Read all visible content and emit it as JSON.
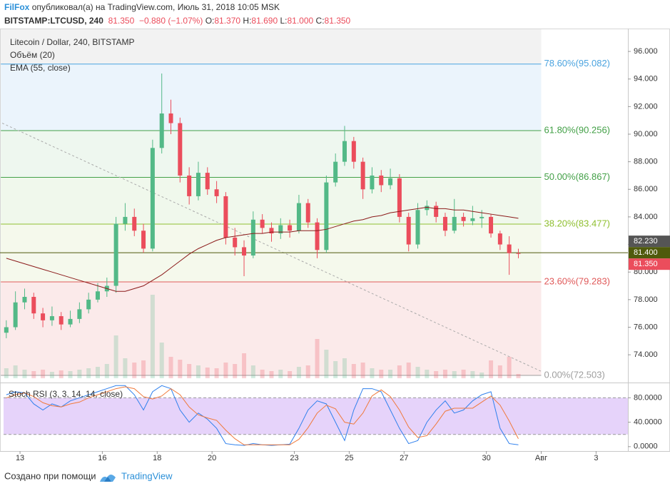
{
  "header": {
    "author": "FilFox",
    "published": "опубликовал(а) на TradingView.com, Июль 31, 2018 10:05 MSK",
    "symbol": "BITSTAMP:LTCUSD, 240",
    "last": "81.350",
    "change": "−0.880 (−1.07%)",
    "ohlc": [
      {
        "label": "O:",
        "value": "81.370"
      },
      {
        "label": "H:",
        "value": "81.690"
      },
      {
        "label": "L:",
        "value": "81.000"
      },
      {
        "label": "C:",
        "value": "81.350"
      }
    ]
  },
  "chart_data": {
    "type": "candlestick",
    "legend": [
      "Litecoin / Dollar, 240, BITSTAMP",
      "Объём (20)",
      "EMA (55, close)"
    ],
    "up_color": "#53b987",
    "down_color": "#eb4d5c",
    "xlim": [
      12.27,
      35.16
    ],
    "xticks": [
      13,
      16,
      18,
      20,
      23,
      25,
      27,
      30,
      {
        "value": 32,
        "label": "Авг"
      },
      {
        "value": 34,
        "label": "3"
      }
    ],
    "ylim": [
      72.04,
      97.66
    ],
    "yticks": [
      {
        "value": 74,
        "label": "74.000"
      },
      {
        "value": 76,
        "label": "76.000"
      },
      {
        "value": 78,
        "label": "78.000"
      },
      {
        "value": 80,
        "label": "80.000"
      },
      {
        "value": 82,
        "label": "82.000"
      },
      {
        "value": 84,
        "label": "84.000"
      },
      {
        "value": 86,
        "label": "86.000"
      },
      {
        "value": 88,
        "label": "88.000"
      },
      {
        "value": 90,
        "label": "90.000"
      },
      {
        "value": 92,
        "label": "92.000"
      },
      {
        "value": 94,
        "label": "94.000"
      },
      {
        "value": 96,
        "label": "96.000"
      }
    ],
    "candles": {
      "x": [
        12.5,
        12.833,
        13.167,
        13.5,
        13.833,
        14.167,
        14.5,
        14.833,
        15.167,
        15.5,
        15.833,
        16.167,
        16.5,
        16.833,
        17.167,
        17.5,
        17.833,
        18.167,
        18.5,
        18.833,
        19.167,
        19.5,
        19.833,
        20.167,
        20.5,
        20.833,
        21.167,
        21.5,
        21.833,
        22.167,
        22.5,
        22.833,
        23.167,
        23.5,
        23.833,
        24.167,
        24.5,
        24.833,
        25.167,
        25.5,
        25.833,
        26.167,
        26.5,
        26.833,
        27.167,
        27.5,
        27.833,
        28.167,
        28.5,
        28.833,
        29.167,
        29.5,
        29.833,
        30.167,
        30.5,
        30.833,
        31.167
      ],
      "open": [
        75.6,
        76.0,
        77.8,
        78.2,
        77.0,
        76.5,
        76.8,
        76.2,
        76.6,
        77.3,
        78.0,
        78.6,
        79.0,
        83.5,
        84.0,
        83.0,
        81.7,
        89.0,
        91.5,
        90.8,
        87.0,
        85.5,
        87.2,
        86.0,
        85.5,
        82.5,
        81.8,
        81.2,
        83.8,
        83.2,
        82.8,
        83.4,
        83.0,
        85.0,
        83.6,
        81.6,
        86.5,
        88.0,
        89.5,
        88.0,
        86.0,
        87.0,
        86.3,
        86.8,
        84.0,
        82.0,
        84.5,
        84.8,
        84.0,
        83.0,
        84.0,
        83.7,
        83.9,
        84.0,
        82.8,
        82.0,
        81.37
      ],
      "high": [
        76.5,
        78.6,
        78.8,
        78.5,
        77.4,
        77.5,
        77.1,
        77.2,
        77.8,
        78.5,
        79.2,
        79.6,
        84.0,
        85.0,
        84.6,
        83.5,
        89.6,
        94.4,
        92.5,
        91.2,
        87.6,
        88.0,
        87.6,
        86.6,
        85.8,
        83.2,
        82.3,
        84.4,
        84.2,
        83.6,
        83.9,
        83.8,
        85.6,
        85.3,
        83.9,
        87.0,
        88.6,
        90.6,
        89.8,
        88.3,
        87.6,
        87.4,
        87.5,
        87.1,
        84.3,
        85.0,
        85.2,
        85.1,
        84.3,
        85.3,
        84.3,
        84.8,
        84.5,
        84.2,
        83.0,
        82.6,
        81.69
      ],
      "low": [
        75.2,
        75.8,
        77.3,
        76.6,
        76.0,
        76.1,
        75.8,
        76.0,
        76.3,
        77.0,
        77.8,
        78.2,
        78.5,
        83.0,
        82.6,
        81.4,
        81.5,
        88.6,
        90.0,
        86.5,
        84.9,
        85.2,
        85.6,
        85.0,
        82.0,
        81.2,
        79.7,
        81.0,
        82.8,
        82.2,
        82.4,
        82.5,
        82.8,
        83.2,
        81.0,
        81.4,
        86.2,
        87.7,
        87.5,
        85.3,
        85.7,
        85.8,
        86.0,
        83.6,
        81.5,
        81.7,
        84.1,
        83.6,
        82.6,
        82.8,
        83.3,
        83.4,
        83.2,
        82.5,
        81.6,
        79.8,
        81.0
      ],
      "close": [
        76.0,
        77.8,
        78.2,
        77.0,
        76.5,
        76.8,
        76.2,
        76.6,
        77.3,
        78.0,
        78.6,
        79.0,
        83.5,
        84.0,
        83.0,
        81.7,
        89.0,
        91.5,
        90.8,
        87.0,
        85.5,
        87.2,
        86.0,
        85.5,
        82.5,
        81.8,
        81.2,
        83.8,
        83.2,
        82.8,
        83.4,
        83.0,
        85.0,
        83.6,
        81.6,
        86.5,
        88.0,
        89.5,
        88.0,
        86.0,
        87.0,
        86.3,
        86.8,
        84.0,
        82.0,
        84.5,
        84.8,
        84.0,
        83.0,
        84.0,
        83.7,
        83.9,
        84.0,
        82.8,
        82.0,
        81.37,
        81.35
      ]
    },
    "volume": {
      "ylim": [
        0,
        150
      ],
      "values": [
        14,
        18,
        12,
        10,
        12,
        9,
        11,
        10,
        12,
        14,
        16,
        20,
        60,
        28,
        22,
        25,
        117,
        50,
        30,
        26,
        20,
        18,
        15,
        14,
        22,
        20,
        35,
        18,
        12,
        10,
        12,
        10,
        16,
        18,
        55,
        40,
        24,
        28,
        20,
        22,
        14,
        12,
        12,
        18,
        22,
        16,
        12,
        10,
        12,
        10,
        12,
        10,
        8,
        25,
        18,
        30,
        6
      ]
    },
    "ema": {
      "name": "EMA (55, close)",
      "color": "#8b1a1a",
      "values": [
        81.0,
        80.8,
        80.6,
        80.4,
        80.2,
        80.0,
        79.8,
        79.6,
        79.4,
        79.2,
        79.0,
        78.8,
        78.6,
        78.6,
        78.8,
        79.0,
        79.4,
        79.8,
        80.3,
        80.8,
        81.3,
        81.7,
        82.0,
        82.3,
        82.5,
        82.6,
        82.7,
        82.8,
        82.8,
        82.9,
        82.9,
        82.9,
        83.0,
        83.0,
        83.0,
        83.1,
        83.3,
        83.5,
        83.7,
        83.8,
        84.0,
        84.1,
        84.3,
        84.4,
        84.5,
        84.6,
        84.7,
        84.6,
        84.6,
        84.5,
        84.5,
        84.4,
        84.3,
        84.2,
        84.1,
        84.0,
        83.9
      ]
    },
    "trendline": {
      "x": [
        12.35,
        32.0
      ],
      "y": [
        90.8,
        72.8
      ],
      "color": "#aaaaaa"
    },
    "fib": {
      "x": [
        12.3,
        32.0
      ],
      "levels": [
        {
          "label": "78.60%(95.082)",
          "value": 95.082,
          "color": "#4aa3df",
          "fill": "#ebf4fc"
        },
        {
          "label": "61.80%(90.256)",
          "value": 90.256,
          "color": "#43a047",
          "fill": "#eef7ef"
        },
        {
          "label": "50.00%(86.867)",
          "value": 86.867,
          "color": "#43a047",
          "fill": "#f0f8ec"
        },
        {
          "label": "38.20%(83.477)",
          "value": 83.477,
          "color": "#8fbf2f",
          "fill": "#f5f9ec"
        },
        {
          "label": "23.60%(79.283)",
          "value": 79.283,
          "color": "#e05a5a",
          "fill": "#fbeaea"
        },
        {
          "label": "0.00%(72.503)",
          "value": 72.503,
          "color": "#9e9e9e"
        }
      ]
    },
    "hline": {
      "value": 81.4,
      "color": "#4f5a0c"
    },
    "price_tags": [
      {
        "label": "82.230",
        "value": 82.23,
        "color": "#555555"
      },
      {
        "label": "81.400",
        "value": 81.4,
        "color": "#4f5a0c"
      },
      {
        "label": "81.350",
        "value": 81.35,
        "color": "#eb4d5c"
      }
    ],
    "stoch": {
      "legend": "Stoch RSI (3, 3, 14, 14, close)",
      "ylim": [
        -7.2,
        102.7
      ],
      "band": [
        20,
        80
      ],
      "band_color": "#e6d3fa",
      "yticks": [
        {
          "value": 0,
          "label": "0.0000"
        },
        {
          "value": 40,
          "label": "40.0000"
        },
        {
          "value": 80,
          "label": "80.0000"
        }
      ],
      "series": [
        {
          "color": "#2f80ed",
          "values": [
            85,
            90,
            88,
            70,
            60,
            70,
            65,
            75,
            80,
            85,
            90,
            95,
            100,
            100,
            85,
            60,
            90,
            100,
            95,
            60,
            40,
            55,
            45,
            30,
            5,
            3,
            2,
            5,
            3,
            2,
            3,
            4,
            30,
            60,
            75,
            70,
            40,
            10,
            60,
            95,
            95,
            90,
            60,
            30,
            5,
            10,
            40,
            60,
            75,
            55,
            60,
            75,
            85,
            90,
            30,
            5,
            3
          ]
        },
        {
          "color": "#f07a3c",
          "values": [
            80,
            85,
            88,
            82,
            72,
            67,
            65,
            70,
            73,
            80,
            85,
            90,
            95,
            98,
            95,
            82,
            78,
            83,
            95,
            85,
            65,
            52,
            47,
            43,
            27,
            13,
            3,
            3,
            3,
            3,
            3,
            3,
            12,
            31,
            55,
            68,
            62,
            40,
            37,
            55,
            83,
            93,
            82,
            60,
            32,
            15,
            18,
            37,
            58,
            63,
            63,
            63,
            73,
            83,
            68,
            42,
            13
          ]
        }
      ]
    }
  },
  "footer": {
    "text": "Создано при помощи",
    "brand": "TradingView"
  }
}
